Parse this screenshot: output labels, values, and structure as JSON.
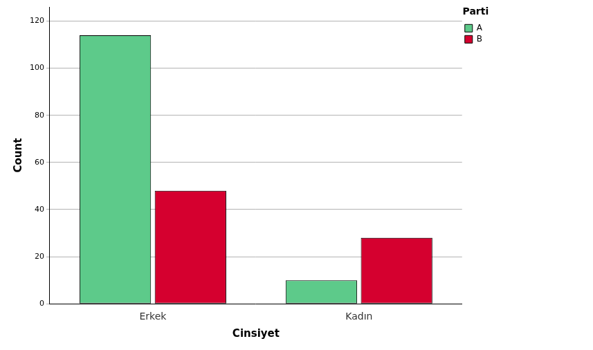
{
  "chart_data": {
    "type": "bar",
    "x_label": "Cinsiyet",
    "y_label": "Count",
    "legend_title": "Parti",
    "legend": "top-right",
    "categories": [
      "Erkek",
      "Kadın"
    ],
    "series": [
      {
        "name": "A",
        "color": "#5dca8a",
        "values": [
          114,
          10
        ]
      },
      {
        "name": "B",
        "color": "#d5002f",
        "values": [
          48,
          28
        ]
      }
    ],
    "ylim": [
      0,
      126
    ],
    "yticks": [
      0,
      20,
      40,
      60,
      80,
      100,
      120
    ],
    "grid": true
  }
}
